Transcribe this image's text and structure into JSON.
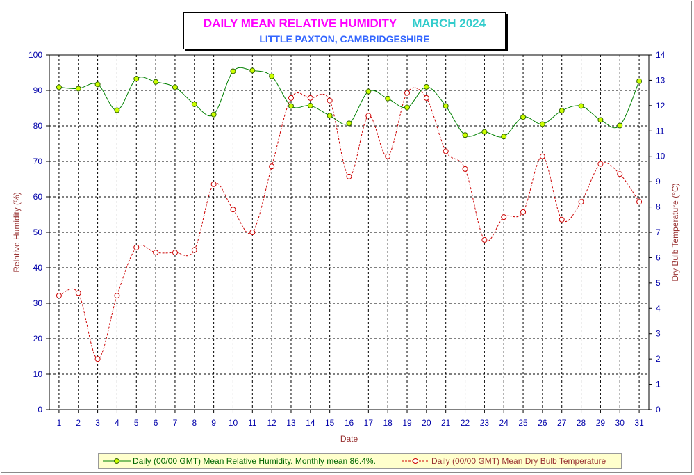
{
  "title": {
    "main": "DAILY MEAN RELATIVE HUMIDITY",
    "period": "MARCH 2024",
    "location": "LITTLE PAXTON, CAMBRIDGESHIRE"
  },
  "colors": {
    "humidity_line": "#008000",
    "humidity_marker": "#ccff00",
    "temperature_line": "#cc0000",
    "temperature_marker": "#ffffff",
    "axis_ticks": "#0000aa",
    "axis_titles": "#993333"
  },
  "chart_data": {
    "type": "line",
    "xlabel": "Date",
    "ylabel_left": "Relative Humidity (%)",
    "ylabel_right": "Dry Bulb Temperature (°C)",
    "x": [
      1,
      2,
      3,
      4,
      5,
      6,
      7,
      8,
      9,
      10,
      11,
      12,
      13,
      14,
      15,
      16,
      17,
      18,
      19,
      20,
      21,
      22,
      23,
      24,
      25,
      26,
      27,
      28,
      29,
      30,
      31
    ],
    "xlim": [
      0.5,
      31.5
    ],
    "ylim_left": [
      0,
      100
    ],
    "yticks_left": [
      0,
      10,
      20,
      30,
      40,
      50,
      60,
      70,
      80,
      90,
      100
    ],
    "ylim_right": [
      0,
      14
    ],
    "yticks_right": [
      0,
      1,
      2,
      3,
      4,
      5,
      6,
      7,
      8,
      9,
      10,
      11,
      12,
      13,
      14
    ],
    "grid": true,
    "legend_position": "bottom",
    "series": [
      {
        "name": "Daily (00/00 GMT) Mean Relative Humidity. Monthly mean 86.4%.",
        "axis": "left",
        "style": "solid",
        "values": [
          90.9,
          90.5,
          91.7,
          84.4,
          93.3,
          92.4,
          90.9,
          86.1,
          83.2,
          95.4,
          95.6,
          94.0,
          85.6,
          85.7,
          82.9,
          80.7,
          89.7,
          87.7,
          85.2,
          91.0,
          85.6,
          77.4,
          78.3,
          77.0,
          82.5,
          80.5,
          84.3,
          85.6,
          81.7,
          80.1,
          92.6
        ]
      },
      {
        "name": "Daily (00/00 GMT) Mean Dry Bulb Temperature",
        "axis": "right",
        "style": "dashed",
        "values": [
          4.5,
          4.6,
          2.0,
          4.5,
          6.4,
          6.2,
          6.2,
          6.3,
          8.9,
          7.9,
          7.0,
          9.6,
          12.3,
          12.3,
          12.2,
          9.2,
          11.6,
          10.0,
          12.5,
          12.3,
          10.2,
          9.5,
          6.7,
          7.6,
          7.8,
          10.0,
          7.5,
          8.2,
          9.7,
          9.3,
          8.2
        ]
      }
    ]
  }
}
